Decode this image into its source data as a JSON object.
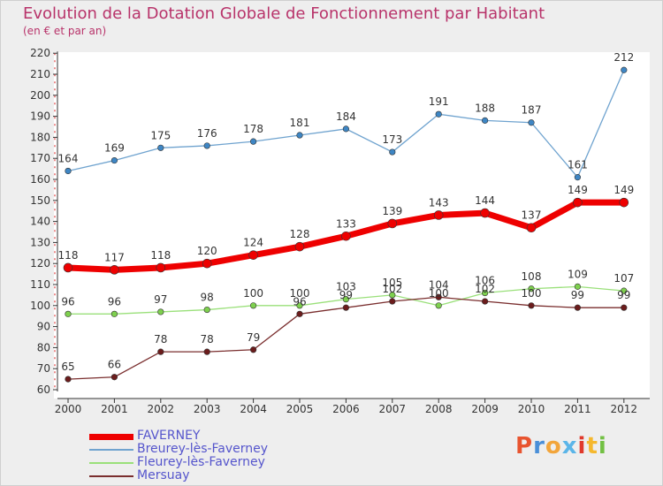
{
  "header": {
    "title": "Evolution de la Dotation Globale de Fonctionnement par Habitant",
    "subtitle": "(en € et par an)"
  },
  "logo": {
    "text": "Proxiti",
    "colors": [
      "#e8542f",
      "#4a8fd8",
      "#f2a53b",
      "#5bb5e8",
      "#e03a2c",
      "#f5b82e",
      "#72c043"
    ]
  },
  "chart_data": {
    "type": "line",
    "title": "Evolution de la Dotation Globale de Fonctionnement par Habitant",
    "subtitle": "(en € et par an)",
    "x": [
      "2000",
      "2001",
      "2002",
      "2003",
      "2004",
      "2005",
      "2006",
      "2007",
      "2008",
      "2009",
      "2010",
      "2011",
      "2012"
    ],
    "ylim": [
      60,
      220
    ],
    "yticks": [
      60,
      70,
      80,
      90,
      100,
      110,
      120,
      130,
      140,
      150,
      160,
      170,
      180,
      190,
      200,
      210,
      220
    ],
    "grid": false,
    "legend_position": "bottom-left",
    "series": [
      {
        "name": "FAVERNEY",
        "color": "#ee0000",
        "marker": "#ee0000",
        "values": [
          118,
          117,
          118,
          120,
          124,
          128,
          133,
          139,
          143,
          144,
          137,
          149,
          149
        ]
      },
      {
        "name": "Breurey-lès-Faverney",
        "color": "#6fa3cf",
        "marker": "#3e86c4",
        "values": [
          164,
          169,
          175,
          176,
          178,
          181,
          184,
          173,
          191,
          188,
          187,
          161,
          212
        ]
      },
      {
        "name": "Fleurey-lès-Faverney",
        "color": "#9ae07a",
        "marker": "#7ed04e",
        "values": [
          96,
          96,
          97,
          98,
          100,
          100,
          103,
          105,
          100,
          106,
          108,
          109,
          107
        ]
      },
      {
        "name": "Mersuay",
        "color": "#7a2e2e",
        "marker": "#6b1c1c",
        "values": [
          65,
          66,
          78,
          78,
          79,
          96,
          99,
          102,
          104,
          102,
          100,
          99,
          99
        ]
      }
    ]
  }
}
